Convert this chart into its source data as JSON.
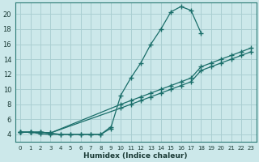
{
  "xlabel": "Humidex (Indice chaleur)",
  "background_color": "#cce8ea",
  "grid_color": "#aacfd2",
  "line_color": "#1a6e6a",
  "xlim": [
    -0.5,
    23.5
  ],
  "ylim": [
    3.0,
    21.5
  ],
  "yticks": [
    4,
    6,
    8,
    10,
    12,
    14,
    16,
    18,
    20
  ],
  "xticks": [
    0,
    1,
    2,
    3,
    4,
    5,
    6,
    7,
    8,
    9,
    10,
    11,
    12,
    13,
    14,
    15,
    16,
    17,
    18,
    19,
    20,
    21,
    22,
    23
  ],
  "series": [
    {
      "x": [
        0,
        1,
        2,
        3,
        4,
        5,
        6,
        7,
        8,
        9,
        10,
        11,
        12,
        13,
        14,
        15,
        16,
        17,
        18
      ],
      "y": [
        4.3,
        4.3,
        4.3,
        4.2,
        4.0,
        4.0,
        4.0,
        4.0,
        4.0,
        4.8,
        9.2,
        11.5,
        13.5,
        16.0,
        18.0,
        20.3,
        21.0,
        20.5,
        17.5
      ]
    },
    {
      "x": [
        0,
        1,
        2,
        3,
        10,
        11,
        12,
        13,
        14,
        15,
        16,
        17,
        18,
        19,
        20,
        21,
        22,
        23
      ],
      "y": [
        4.3,
        4.3,
        4.3,
        4.2,
        8.0,
        8.5,
        9.0,
        9.5,
        10.0,
        10.5,
        11.0,
        11.5,
        13.0,
        13.5,
        14.0,
        14.5,
        15.0,
        15.5
      ]
    },
    {
      "x": [
        0,
        1,
        2,
        3,
        10,
        11,
        12,
        13,
        14,
        15,
        16,
        17,
        18,
        19,
        20,
        21,
        22,
        23
      ],
      "y": [
        4.3,
        4.3,
        4.3,
        4.2,
        7.5,
        8.0,
        8.5,
        9.0,
        9.5,
        10.0,
        10.5,
        11.0,
        12.5,
        13.0,
        13.5,
        14.0,
        14.5,
        15.0
      ]
    }
  ],
  "series_bottom": {
    "x": [
      0,
      1,
      2,
      3,
      4,
      5,
      6,
      7,
      8,
      9
    ],
    "y": [
      4.3,
      4.3,
      4.1,
      4.0,
      4.0,
      4.0,
      4.0,
      4.0,
      4.0,
      5.0
    ]
  }
}
